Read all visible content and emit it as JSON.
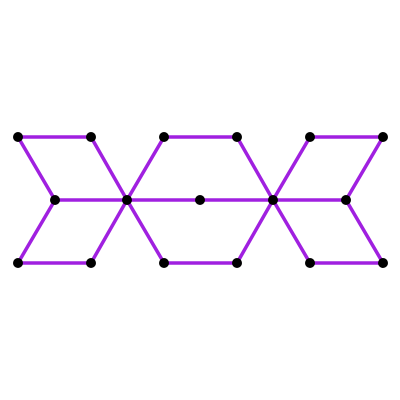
{
  "graph": {
    "edge_color": "#a020e0",
    "node_color": "#000000",
    "background": "#ffffff",
    "nodes": [
      {
        "id": "n1"
      },
      {
        "id": "n2"
      },
      {
        "id": "n3"
      },
      {
        "id": "n4"
      },
      {
        "id": "n5"
      },
      {
        "id": "n6"
      },
      {
        "id": "n7"
      },
      {
        "id": "n8"
      },
      {
        "id": "n9"
      },
      {
        "id": "n10"
      },
      {
        "id": "n11"
      },
      {
        "id": "n12"
      },
      {
        "id": "n13"
      },
      {
        "id": "n14"
      },
      {
        "id": "n15"
      },
      {
        "id": "n16"
      },
      {
        "id": "n17"
      }
    ],
    "edges": [
      [
        "n1",
        "n2"
      ],
      [
        "n1",
        "n4"
      ],
      [
        "n2",
        "n5"
      ],
      [
        "n4",
        "n3"
      ],
      [
        "n3",
        "n6"
      ],
      [
        "n5",
        "n6"
      ],
      [
        "n4",
        "n5"
      ],
      [
        "n5",
        "n7"
      ],
      [
        "n5",
        "n9"
      ],
      [
        "n7",
        "n8"
      ],
      [
        "n8",
        "n12"
      ],
      [
        "n7",
        "n10"
      ],
      [
        "n9",
        "n11"
      ],
      [
        "n10",
        "n11"
      ],
      [
        "n11",
        "n12"
      ],
      [
        "n12",
        "n13"
      ],
      [
        "n12",
        "n14"
      ],
      [
        "n12",
        "n15"
      ],
      [
        "n13",
        "n16"
      ],
      [
        "n15",
        "n14"
      ],
      [
        "n16",
        "n15"
      ],
      [
        "n15",
        "n17"
      ],
      [
        "n17",
        "n11"
      ]
    ]
  }
}
